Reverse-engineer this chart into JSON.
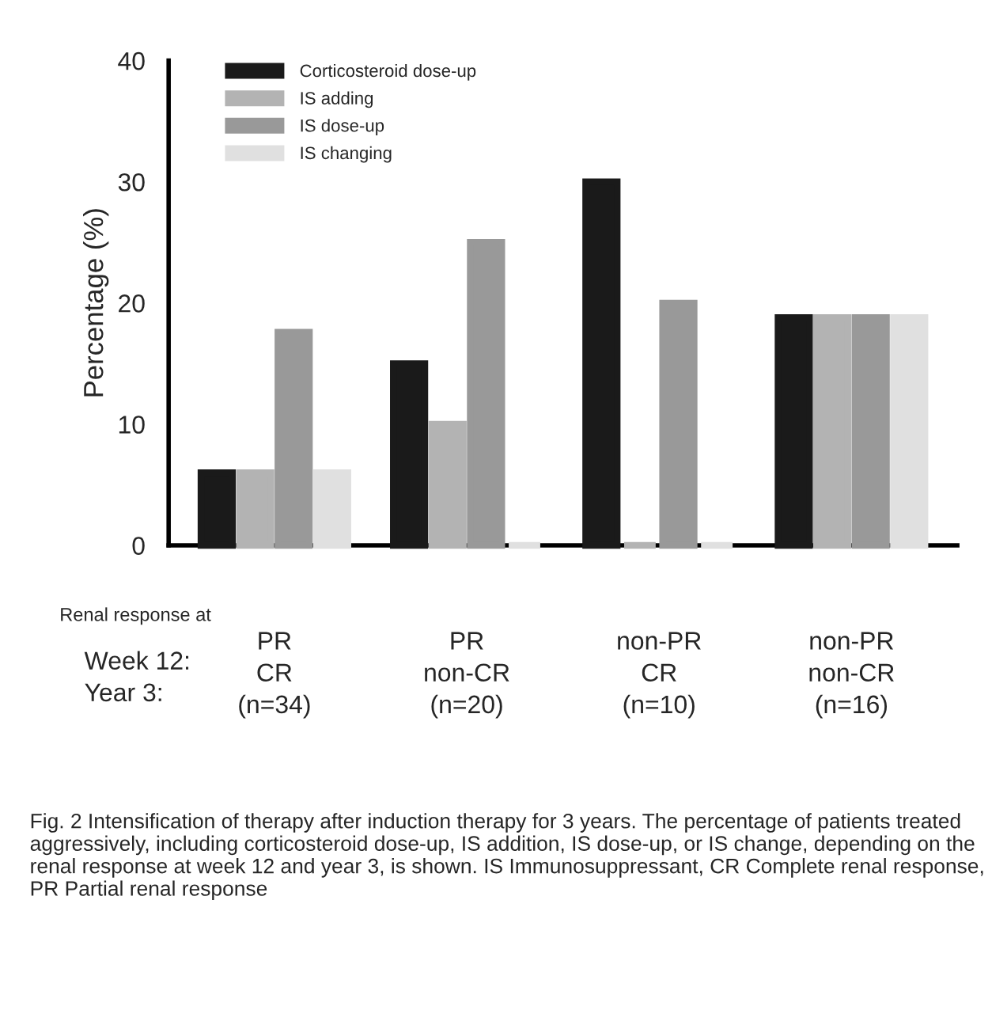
{
  "chart_data": {
    "type": "bar",
    "ylabel": "Percentage (%)",
    "categories": [
      "PR\nCR\n(n=34)",
      "PR\nnon-CR\n(n=20)",
      "non-PR\nCR\n(n=10)",
      "non-PR\nnon-CR\n(n=16)"
    ],
    "series": [
      {
        "name": "Corticosteroid dose-up",
        "color": "#1a1a1a",
        "values": [
          6,
          15,
          30,
          18.8
        ]
      },
      {
        "name": "IS adding",
        "color": "#b3b3b3",
        "values": [
          6,
          10,
          0,
          18.8
        ]
      },
      {
        "name": "IS dose-up",
        "color": "#999999",
        "values": [
          17.6,
          25,
          20,
          18.8
        ]
      },
      {
        "name": "IS changing",
        "color": "#e0e0e0",
        "values": [
          6,
          0,
          0,
          18.8
        ]
      }
    ],
    "ylim": [
      0,
      40
    ],
    "yticks": [
      0,
      10,
      20,
      30,
      40
    ],
    "grid": false,
    "legend": "top left",
    "annotations": [
      "Renal response at",
      "Week 12:\nYear 3:",
      "Fig. 2 Intensification of therapy after induction therapy for 3 years. The percentage of patients treated aggressively, including corticosteroid dose-up, IS addition, IS dose-up, or IS change, depending on the renal response at week 12 and year 3, is shown. IS Immunosuppressant, CR Complete renal response, PR Partial renal response"
    ]
  }
}
